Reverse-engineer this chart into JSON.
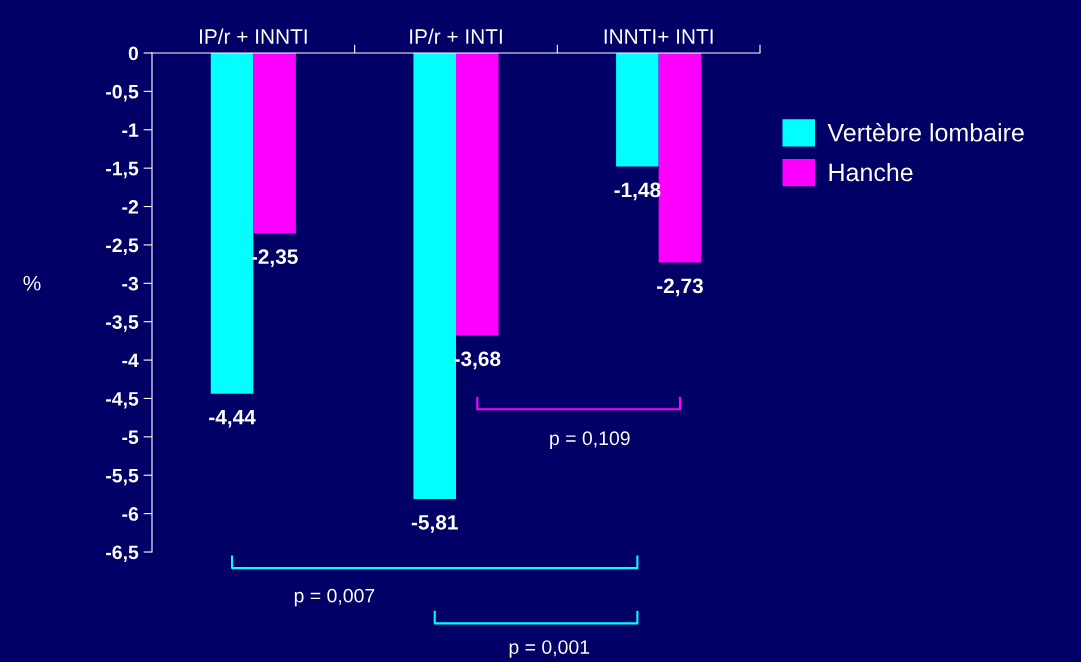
{
  "chart_data": {
    "type": "bar",
    "ylabel": "%",
    "categories": [
      "IP/r + INNTI",
      "IP/r + INTI",
      "INNTI+ INTI"
    ],
    "series": [
      {
        "name": "Vertèbre lombaire",
        "color": "#00ffff",
        "values": [
          -4.44,
          -5.81,
          -1.48
        ],
        "value_labels": [
          "-4,44",
          "-5,81",
          "-1,48"
        ]
      },
      {
        "name": "Hanche",
        "color": "#ff00ff",
        "values": [
          -2.35,
          -3.68,
          -2.73
        ],
        "value_labels": [
          "-2,35",
          "-3,68",
          "-2,73"
        ]
      }
    ],
    "ylim": [
      -6.5,
      0
    ],
    "yticks": [
      0,
      {
        "value": -0.5,
        "label": "-0,5"
      },
      -1,
      {
        "value": -1.5,
        "label": "-1,5"
      },
      -2,
      {
        "value": -2.5,
        "label": "-2,5"
      },
      -3,
      {
        "value": -3.5,
        "label": "-3,5"
      },
      -4,
      {
        "value": -4.5,
        "label": "-4,5"
      },
      -5,
      {
        "value": -5.5,
        "label": "-5,5"
      },
      -6,
      {
        "value": -6.5,
        "label": "-6,5"
      }
    ],
    "legend": "right",
    "grid": false,
    "annotations": [
      "p = 0,007",
      "p = 0,001",
      "p = 0,109"
    ]
  }
}
